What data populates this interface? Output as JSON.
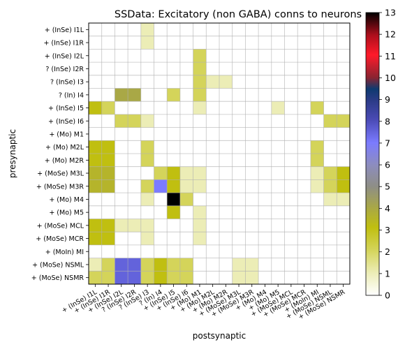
{
  "chart_data": {
    "type": "heatmap",
    "title": "SSData: Excitatory (non GABA) conns to neurons",
    "xlabel": "postsynaptic",
    "ylabel": "presynaptic",
    "labels": [
      "+ (InSe) I1L",
      "+ (InSe) I1R",
      "+ (InSe) I2L",
      "? (InSe) I2R",
      "? (InSe) I3",
      "? (In) I4",
      "+ (InSe) I5",
      "+ (InSe) I6",
      "+ (Mo) M1",
      "+ (Mo) M2L",
      "+ (Mo) M2R",
      "+ (MoSe) M3L",
      "+ (MoSe) M3R",
      "+ (Mo) M4",
      "+ (Mo) M5",
      "+ (MoSe) MCL",
      "+ (MoSe) MCR",
      "+ (MoIn) MI",
      "+ (MoSe) NSML",
      "+ (MoSe) NSMR"
    ],
    "xtick_labels": [
      "+ (InSe) I1L",
      "+ (InSe) I1R",
      "+ (InSe) I2L",
      "? (InSe) I2R",
      "? (InSe) I3",
      "? (In) I4",
      "+ (InSe) I5",
      "+ (InSe) I6",
      "+ (Mo) M1",
      "+ (Mo) M2L",
      "+ (Mo) M2R",
      "+ (MoSe) M3L",
      "+ (MoSe) M3R",
      "+ (Mo) M4",
      "+ (Mo) M5",
      "+ (MoSe) MCL",
      "+ (MoSe) MCR",
      "+ (MoIn) MI",
      "+ (MoSe) NSML",
      "+ (MoSe) NSMR"
    ],
    "matrix": [
      [
        0,
        0,
        0,
        0,
        1,
        0,
        0,
        0,
        0,
        0,
        0,
        0,
        0,
        0,
        0,
        0,
        0,
        0,
        0,
        0
      ],
      [
        0,
        0,
        0,
        0,
        1,
        0,
        0,
        0,
        0,
        0,
        0,
        0,
        0,
        0,
        0,
        0,
        0,
        0,
        0,
        0
      ],
      [
        0,
        0,
        0,
        0,
        0,
        0,
        0,
        0,
        2,
        0,
        0,
        0,
        0,
        0,
        0,
        0,
        0,
        0,
        0,
        0
      ],
      [
        0,
        0,
        0,
        0,
        0,
        0,
        0,
        0,
        2,
        0,
        0,
        0,
        0,
        0,
        0,
        0,
        0,
        0,
        0,
        0
      ],
      [
        0,
        0,
        0,
        0,
        0,
        0,
        0,
        0,
        2,
        1,
        1,
        0,
        0,
        0,
        0,
        0,
        0,
        0,
        0,
        0
      ],
      [
        0,
        0,
        4,
        4,
        0,
        0,
        2,
        0,
        2,
        0,
        0,
        0,
        0,
        0,
        0,
        0,
        0,
        0,
        0,
        0
      ],
      [
        3,
        2,
        0,
        0,
        0,
        0,
        0,
        0,
        1,
        0,
        0,
        0,
        0,
        0,
        1,
        0,
        0,
        2,
        0,
        0
      ],
      [
        0,
        0,
        2,
        2,
        1,
        0,
        0,
        0,
        0,
        0,
        0,
        0,
        0,
        0,
        0,
        0,
        0,
        0,
        2,
        2
      ],
      [
        0,
        0,
        0,
        0,
        0,
        0,
        0,
        0,
        0,
        0,
        0,
        0,
        0,
        0,
        0,
        0,
        0,
        0,
        0,
        0
      ],
      [
        3,
        3,
        0,
        0,
        2,
        0,
        0,
        0,
        0,
        0,
        0,
        0,
        0,
        0,
        0,
        0,
        0,
        2,
        0,
        0
      ],
      [
        3,
        3,
        0,
        0,
        2,
        0,
        0,
        0,
        0,
        0,
        0,
        0,
        0,
        0,
        0,
        0,
        0,
        2,
        0,
        0
      ],
      [
        3.5,
        3.5,
        0,
        0,
        0,
        2,
        3,
        1,
        1,
        0,
        0,
        0,
        0,
        0,
        0,
        0,
        0,
        1,
        2,
        3
      ],
      [
        3.5,
        3.5,
        0,
        0,
        2,
        7,
        3,
        1,
        1,
        0,
        0,
        0,
        0,
        0,
        0,
        0,
        0,
        1,
        2,
        3
      ],
      [
        0,
        0,
        0,
        0,
        1,
        0,
        13,
        2,
        0,
        0,
        0,
        0,
        0,
        0,
        0,
        0,
        0,
        0,
        1,
        1
      ],
      [
        0,
        0,
        0,
        0,
        0,
        0,
        3,
        0,
        1,
        0,
        0,
        0,
        0,
        0,
        0,
        0,
        0,
        0,
        0,
        0
      ],
      [
        3,
        3,
        1,
        1,
        1,
        0,
        0,
        0,
        1,
        0,
        0,
        0,
        0,
        0,
        0,
        0,
        0,
        0,
        0,
        0
      ],
      [
        3,
        3,
        0,
        0,
        1,
        0,
        0,
        0,
        1,
        0,
        0,
        0,
        0,
        0,
        0,
        0,
        0,
        0,
        0,
        0
      ],
      [
        0,
        0,
        0,
        0,
        0,
        0,
        0,
        0,
        0,
        0,
        0,
        0,
        0,
        0,
        0,
        0,
        0,
        0,
        0,
        0
      ],
      [
        1,
        2,
        7.5,
        7.5,
        2,
        3,
        2,
        2,
        0,
        0,
        0,
        1,
        1,
        0,
        0,
        0,
        0,
        0,
        0,
        0
      ],
      [
        2,
        2,
        7.5,
        7.5,
        2,
        3,
        2,
        2,
        0,
        0,
        0,
        1,
        1,
        0,
        0,
        0,
        0,
        0,
        0,
        0
      ]
    ],
    "colorbar": {
      "range": [
        0,
        13
      ],
      "ticks": [
        "0",
        "1",
        "2",
        "3",
        "4",
        "5",
        "6",
        "7",
        "8",
        "9",
        "10",
        "11",
        "12",
        "13"
      ],
      "colormap": "gist_stern_r-like: white→yellow-olive→gray→blue→navy→red→black"
    },
    "grid": true
  }
}
